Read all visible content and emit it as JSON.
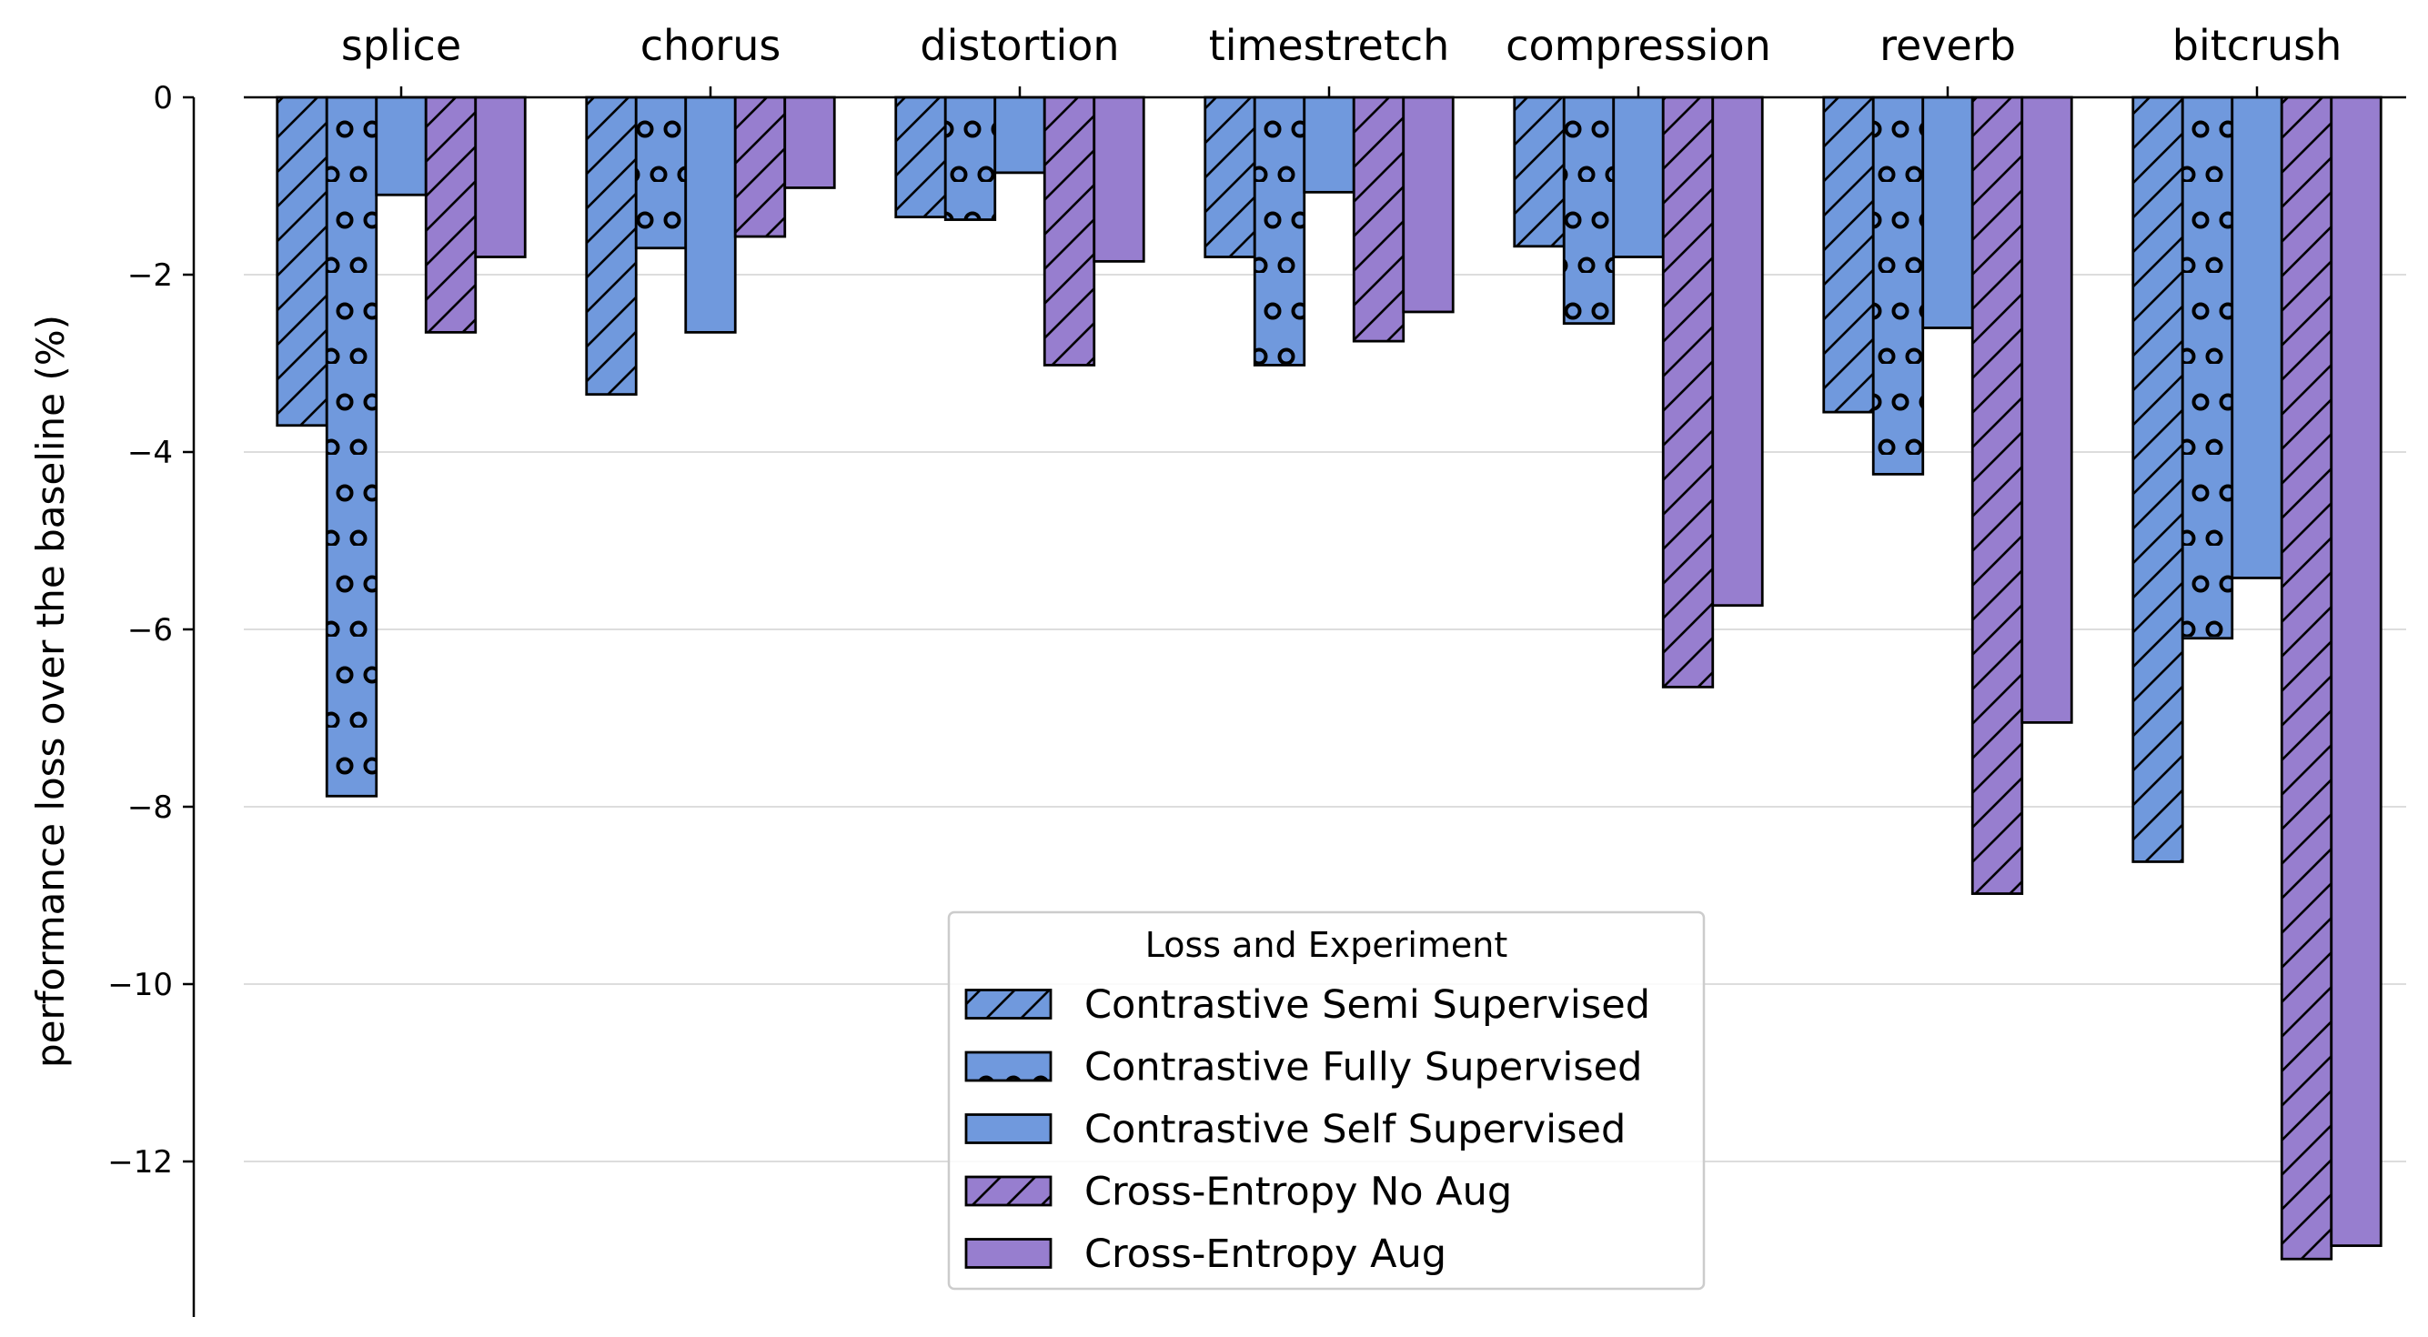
{
  "chart_data": {
    "type": "bar",
    "title": "",
    "xlabel": "",
    "ylabel": "performance loss over the baseline (%)",
    "categories": [
      "splice",
      "chorus",
      "distortion",
      "timestretch",
      "compression",
      "reverb",
      "bitcrush"
    ],
    "ylim": [
      -13.7,
      0
    ],
    "yticks": [
      0,
      -2,
      -4,
      -6,
      -8,
      -10,
      -12
    ],
    "ytick_labels": [
      "0",
      "−2",
      "−4",
      "−6",
      "−8",
      "−10",
      "−12"
    ],
    "grid": "horizontal",
    "legend_position": "bottom-center",
    "legend_title": "Loss and Experiment",
    "series": [
      {
        "name": "Contrastive Semi Supervised",
        "color": "#7099dd",
        "hatch": "diagonal",
        "values": [
          -3.7,
          -3.35,
          -1.35,
          -1.8,
          -1.68,
          -3.55,
          -8.62
        ]
      },
      {
        "name": "Contrastive Fully Supervised",
        "color": "#7099dd",
        "hatch": "circles",
        "values": [
          -7.88,
          -1.7,
          -1.38,
          -3.02,
          -2.55,
          -4.25,
          -6.1
        ]
      },
      {
        "name": "Contrastive Self Supervised",
        "color": "#7099dd",
        "hatch": "none",
        "values": [
          -1.1,
          -2.65,
          -0.85,
          -1.07,
          -1.8,
          -2.6,
          -5.42
        ]
      },
      {
        "name": "Cross-Entropy No Aug",
        "color": "#977ecf",
        "hatch": "diagonal",
        "values": [
          -2.65,
          -1.57,
          -3.02,
          -2.75,
          -6.65,
          -8.98,
          -13.1
        ]
      },
      {
        "name": "Cross-Entropy Aug",
        "color": "#977ecf",
        "hatch": "none",
        "values": [
          -1.8,
          -1.02,
          -1.85,
          -2.42,
          -5.73,
          -7.05,
          -12.95
        ]
      }
    ]
  }
}
